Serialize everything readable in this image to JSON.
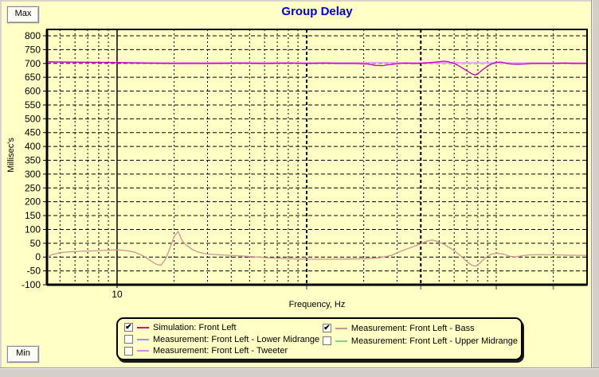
{
  "window": {
    "max_button": "Max",
    "min_button": "Min"
  },
  "chart_data": {
    "type": "line",
    "title": "Group Delay",
    "xlabel": "Frequency, Hz",
    "ylabel": "Millisec's",
    "x_scale": "log",
    "xlim": [
      4.27,
      3013
    ],
    "ylim": [
      -100,
      800
    ],
    "background": "#FFFFC6",
    "grid_color": "#000000",
    "grid_style": "dashed",
    "legend_position": "bottom",
    "y_ticks": [
      800,
      750,
      700,
      650,
      600,
      550,
      500,
      450,
      400,
      350,
      300,
      250,
      200,
      150,
      100,
      50,
      0,
      -50,
      -100
    ],
    "x_labeled_ticks": [
      10
    ],
    "x_solid_gridlines": [
      10
    ],
    "x_bold_gridlines": [
      100,
      400
    ],
    "x_minor_gridlines": [
      5,
      6,
      7,
      8,
      9,
      20,
      30,
      40,
      50,
      60,
      70,
      80,
      90,
      200,
      300,
      500,
      600,
      700,
      800,
      900,
      1000,
      2000
    ],
    "x_gray_axis_ticks": [
      100,
      400,
      1000,
      2000
    ],
    "series": [
      {
        "name": "flat pink overlay line (unlabeled)",
        "color": "#F2A2F2",
        "width": 2,
        "points": [
          [
            4.3,
            705
          ],
          [
            7,
            704
          ],
          [
            12,
            703
          ],
          [
            100,
            703
          ],
          [
            1000,
            702
          ],
          [
            3000,
            702
          ]
        ]
      },
      {
        "name": "Measurement: Front Left - Bass",
        "color": "#CE9494",
        "width": 1.3,
        "points": [
          [
            4.3,
            -2
          ],
          [
            4.5,
            8
          ],
          [
            5,
            16
          ],
          [
            5.6,
            19
          ],
          [
            6.5,
            21
          ],
          [
            8,
            23
          ],
          [
            9,
            25
          ],
          [
            10,
            26
          ],
          [
            11,
            24
          ],
          [
            12,
            20
          ],
          [
            13,
            12
          ],
          [
            14,
            1
          ],
          [
            15,
            -13
          ],
          [
            16,
            -25
          ],
          [
            17,
            -30
          ],
          [
            18,
            -8
          ],
          [
            19,
            32
          ],
          [
            20,
            74
          ],
          [
            21,
            93
          ],
          [
            22,
            60
          ],
          [
            23,
            45
          ],
          [
            25,
            27
          ],
          [
            27,
            17
          ],
          [
            30,
            11
          ],
          [
            35,
            8
          ],
          [
            40,
            6
          ],
          [
            50,
            2
          ],
          [
            60,
            -2
          ],
          [
            75,
            -5
          ],
          [
            90,
            -7
          ],
          [
            110,
            -8
          ],
          [
            135,
            -8
          ],
          [
            165,
            -7
          ],
          [
            200,
            -6
          ],
          [
            240,
            -3
          ],
          [
            280,
            6
          ],
          [
            310,
            20
          ],
          [
            350,
            33
          ],
          [
            390,
            45
          ],
          [
            430,
            58
          ],
          [
            460,
            62
          ],
          [
            490,
            56
          ],
          [
            530,
            46
          ],
          [
            570,
            33
          ],
          [
            610,
            19
          ],
          [
            650,
            4
          ],
          [
            700,
            -16
          ],
          [
            740,
            -29
          ],
          [
            780,
            -33
          ],
          [
            820,
            -22
          ],
          [
            860,
            -8
          ],
          [
            900,
            4
          ],
          [
            950,
            11
          ],
          [
            1020,
            14
          ],
          [
            1100,
            10
          ],
          [
            1180,
            3
          ],
          [
            1260,
            0
          ],
          [
            1350,
            4
          ],
          [
            1500,
            8
          ],
          [
            1700,
            9
          ],
          [
            2000,
            8
          ],
          [
            2400,
            7
          ],
          [
            3000,
            6
          ]
        ]
      },
      {
        "name": "Simulation: Front Left",
        "color": "#BB00BB",
        "width": 1.3,
        "points": [
          [
            4.3,
            706
          ],
          [
            5,
            705
          ],
          [
            7,
            704
          ],
          [
            10,
            703
          ],
          [
            14,
            701
          ],
          [
            20,
            700
          ],
          [
            30,
            700
          ],
          [
            45,
            701
          ],
          [
            60,
            700
          ],
          [
            80,
            701
          ],
          [
            100,
            700
          ],
          [
            125,
            701
          ],
          [
            150,
            700
          ],
          [
            180,
            700
          ],
          [
            210,
            698
          ],
          [
            230,
            693
          ],
          [
            250,
            692
          ],
          [
            270,
            695
          ],
          [
            300,
            699
          ],
          [
            330,
            701
          ],
          [
            370,
            700
          ],
          [
            410,
            701
          ],
          [
            450,
            703
          ],
          [
            500,
            706
          ],
          [
            530,
            708
          ],
          [
            560,
            706
          ],
          [
            600,
            700
          ],
          [
            640,
            690
          ],
          [
            690,
            676
          ],
          [
            740,
            663
          ],
          [
            775,
            658
          ],
          [
            810,
            666
          ],
          [
            850,
            678
          ],
          [
            900,
            690
          ],
          [
            950,
            699
          ],
          [
            1000,
            704
          ],
          [
            1060,
            705
          ],
          [
            1120,
            701
          ],
          [
            1200,
            698
          ],
          [
            1300,
            697
          ],
          [
            1400,
            698
          ],
          [
            1550,
            700
          ],
          [
            1750,
            700
          ],
          [
            2000,
            700
          ],
          [
            2300,
            701
          ],
          [
            2600,
            700
          ],
          [
            3000,
            700
          ]
        ]
      }
    ]
  },
  "legend": {
    "columns": [
      [
        {
          "label": "Simulation: Front Left",
          "checked": true,
          "color": "#BB00BB"
        },
        {
          "label": "Measurement: Front Left - Lower Midrange",
          "checked": false,
          "color": "#9898D8"
        },
        {
          "label": "Measurement: Front Left - Tweeter",
          "checked": false,
          "color": "#E088E0"
        }
      ],
      [
        {
          "label": "Measurement: Front Left - Bass",
          "checked": true,
          "color": "#CE9494"
        },
        {
          "label": "Measurement: Front Left - Upper Midrange",
          "checked": false,
          "color": "#8CCC8C"
        }
      ]
    ]
  }
}
